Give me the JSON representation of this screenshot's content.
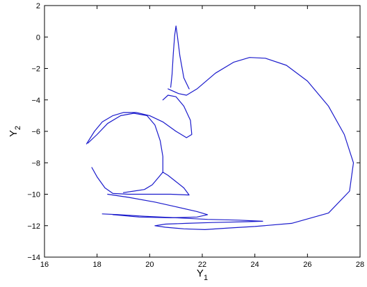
{
  "chart_data": {
    "type": "line",
    "title": "",
    "xlabel": {
      "main": "Y",
      "sub": "1"
    },
    "ylabel": {
      "main": "Y",
      "sub": "2"
    },
    "xlim": [
      16,
      28
    ],
    "ylim": [
      -14,
      2
    ],
    "xticks": [
      16,
      18,
      20,
      22,
      24,
      26,
      28
    ],
    "yticks": [
      -14,
      -12,
      -10,
      -8,
      -6,
      -4,
      -2,
      0,
      2
    ],
    "xtick_labels": [
      "16",
      "18",
      "20",
      "22",
      "24",
      "26",
      "28"
    ],
    "ytick_labels": [
      "−14",
      "−12",
      "−10",
      "−8",
      "−6",
      "−4",
      "−2",
      "0",
      "2"
    ],
    "grid": false,
    "line_color": "#1a1acc",
    "series": [
      {
        "values": [
          [
            20.7,
            -3.3
          ],
          [
            21.1,
            -3.6
          ],
          [
            21.4,
            -3.7
          ],
          [
            21.8,
            -3.3
          ],
          [
            22.5,
            -2.3
          ],
          [
            23.2,
            -1.6
          ],
          [
            23.8,
            -1.3
          ],
          [
            24.4,
            -1.35
          ],
          [
            25.2,
            -1.8
          ],
          [
            26.0,
            -2.8
          ],
          [
            26.8,
            -4.4
          ],
          [
            27.4,
            -6.2
          ],
          [
            27.75,
            -8.0
          ],
          [
            27.6,
            -9.8
          ],
          [
            26.8,
            -11.2
          ],
          [
            25.4,
            -11.85
          ],
          [
            24.0,
            -12.05
          ],
          [
            23.0,
            -12.15
          ],
          [
            22.1,
            -12.25
          ],
          [
            21.3,
            -12.2
          ],
          [
            20.6,
            -12.1
          ],
          [
            20.2,
            -12.0
          ],
          [
            20.6,
            -11.9
          ],
          [
            21.4,
            -11.85
          ],
          [
            22.4,
            -11.8
          ],
          [
            23.6,
            -11.75
          ],
          [
            24.3,
            -11.72
          ],
          [
            23.4,
            -11.65
          ],
          [
            22.2,
            -11.6
          ],
          [
            21.0,
            -11.5
          ],
          [
            19.8,
            -11.4
          ],
          [
            18.8,
            -11.3
          ],
          [
            18.2,
            -11.25
          ]
        ]
      },
      {
        "values": [
          [
            20.8,
            -3.2
          ],
          [
            20.85,
            -2.4
          ],
          [
            20.9,
            -1.0
          ],
          [
            20.95,
            0.1
          ],
          [
            21.0,
            0.7
          ],
          [
            21.05,
            0.1
          ],
          [
            21.15,
            -1.2
          ],
          [
            21.3,
            -2.6
          ],
          [
            21.5,
            -3.3
          ]
        ]
      },
      {
        "values": [
          [
            20.5,
            -4.0
          ],
          [
            20.7,
            -3.7
          ],
          [
            21.0,
            -3.8
          ],
          [
            21.3,
            -4.4
          ],
          [
            21.55,
            -5.3
          ],
          [
            21.6,
            -6.2
          ],
          [
            21.4,
            -6.4
          ],
          [
            21.0,
            -6.0
          ],
          [
            20.5,
            -5.4
          ],
          [
            20.0,
            -5.0
          ],
          [
            19.5,
            -4.8
          ],
          [
            19.0,
            -4.8
          ],
          [
            18.6,
            -5.0
          ],
          [
            18.2,
            -5.4
          ],
          [
            17.9,
            -6.0
          ],
          [
            17.6,
            -6.8
          ]
        ]
      },
      {
        "values": [
          [
            17.65,
            -6.75
          ],
          [
            18.0,
            -6.2
          ],
          [
            18.4,
            -5.5
          ],
          [
            18.9,
            -5.0
          ],
          [
            19.4,
            -4.85
          ],
          [
            19.9,
            -5.0
          ],
          [
            20.2,
            -5.6
          ],
          [
            20.4,
            -6.6
          ],
          [
            20.5,
            -7.6
          ],
          [
            20.5,
            -8.6
          ]
        ]
      },
      {
        "values": [
          [
            17.8,
            -8.3
          ],
          [
            18.0,
            -8.9
          ],
          [
            18.3,
            -9.6
          ],
          [
            18.6,
            -9.95
          ],
          [
            19.2,
            -10.0
          ],
          [
            20.0,
            -10.0
          ],
          [
            20.8,
            -10.0
          ],
          [
            21.5,
            -10.05
          ],
          [
            21.3,
            -9.6
          ],
          [
            21.0,
            -9.2
          ],
          [
            20.7,
            -8.8
          ],
          [
            20.5,
            -8.6
          ],
          [
            20.3,
            -9.0
          ],
          [
            20.1,
            -9.4
          ],
          [
            19.8,
            -9.7
          ],
          [
            19.4,
            -9.8
          ],
          [
            19.0,
            -9.9
          ]
        ]
      },
      {
        "values": [
          [
            18.4,
            -10.0
          ],
          [
            19.2,
            -10.2
          ],
          [
            20.2,
            -10.5
          ],
          [
            21.0,
            -10.8
          ],
          [
            21.8,
            -11.1
          ],
          [
            22.2,
            -11.3
          ],
          [
            21.8,
            -11.45
          ],
          [
            20.8,
            -11.5
          ],
          [
            19.6,
            -11.45
          ],
          [
            18.6,
            -11.3
          ]
        ]
      }
    ]
  }
}
